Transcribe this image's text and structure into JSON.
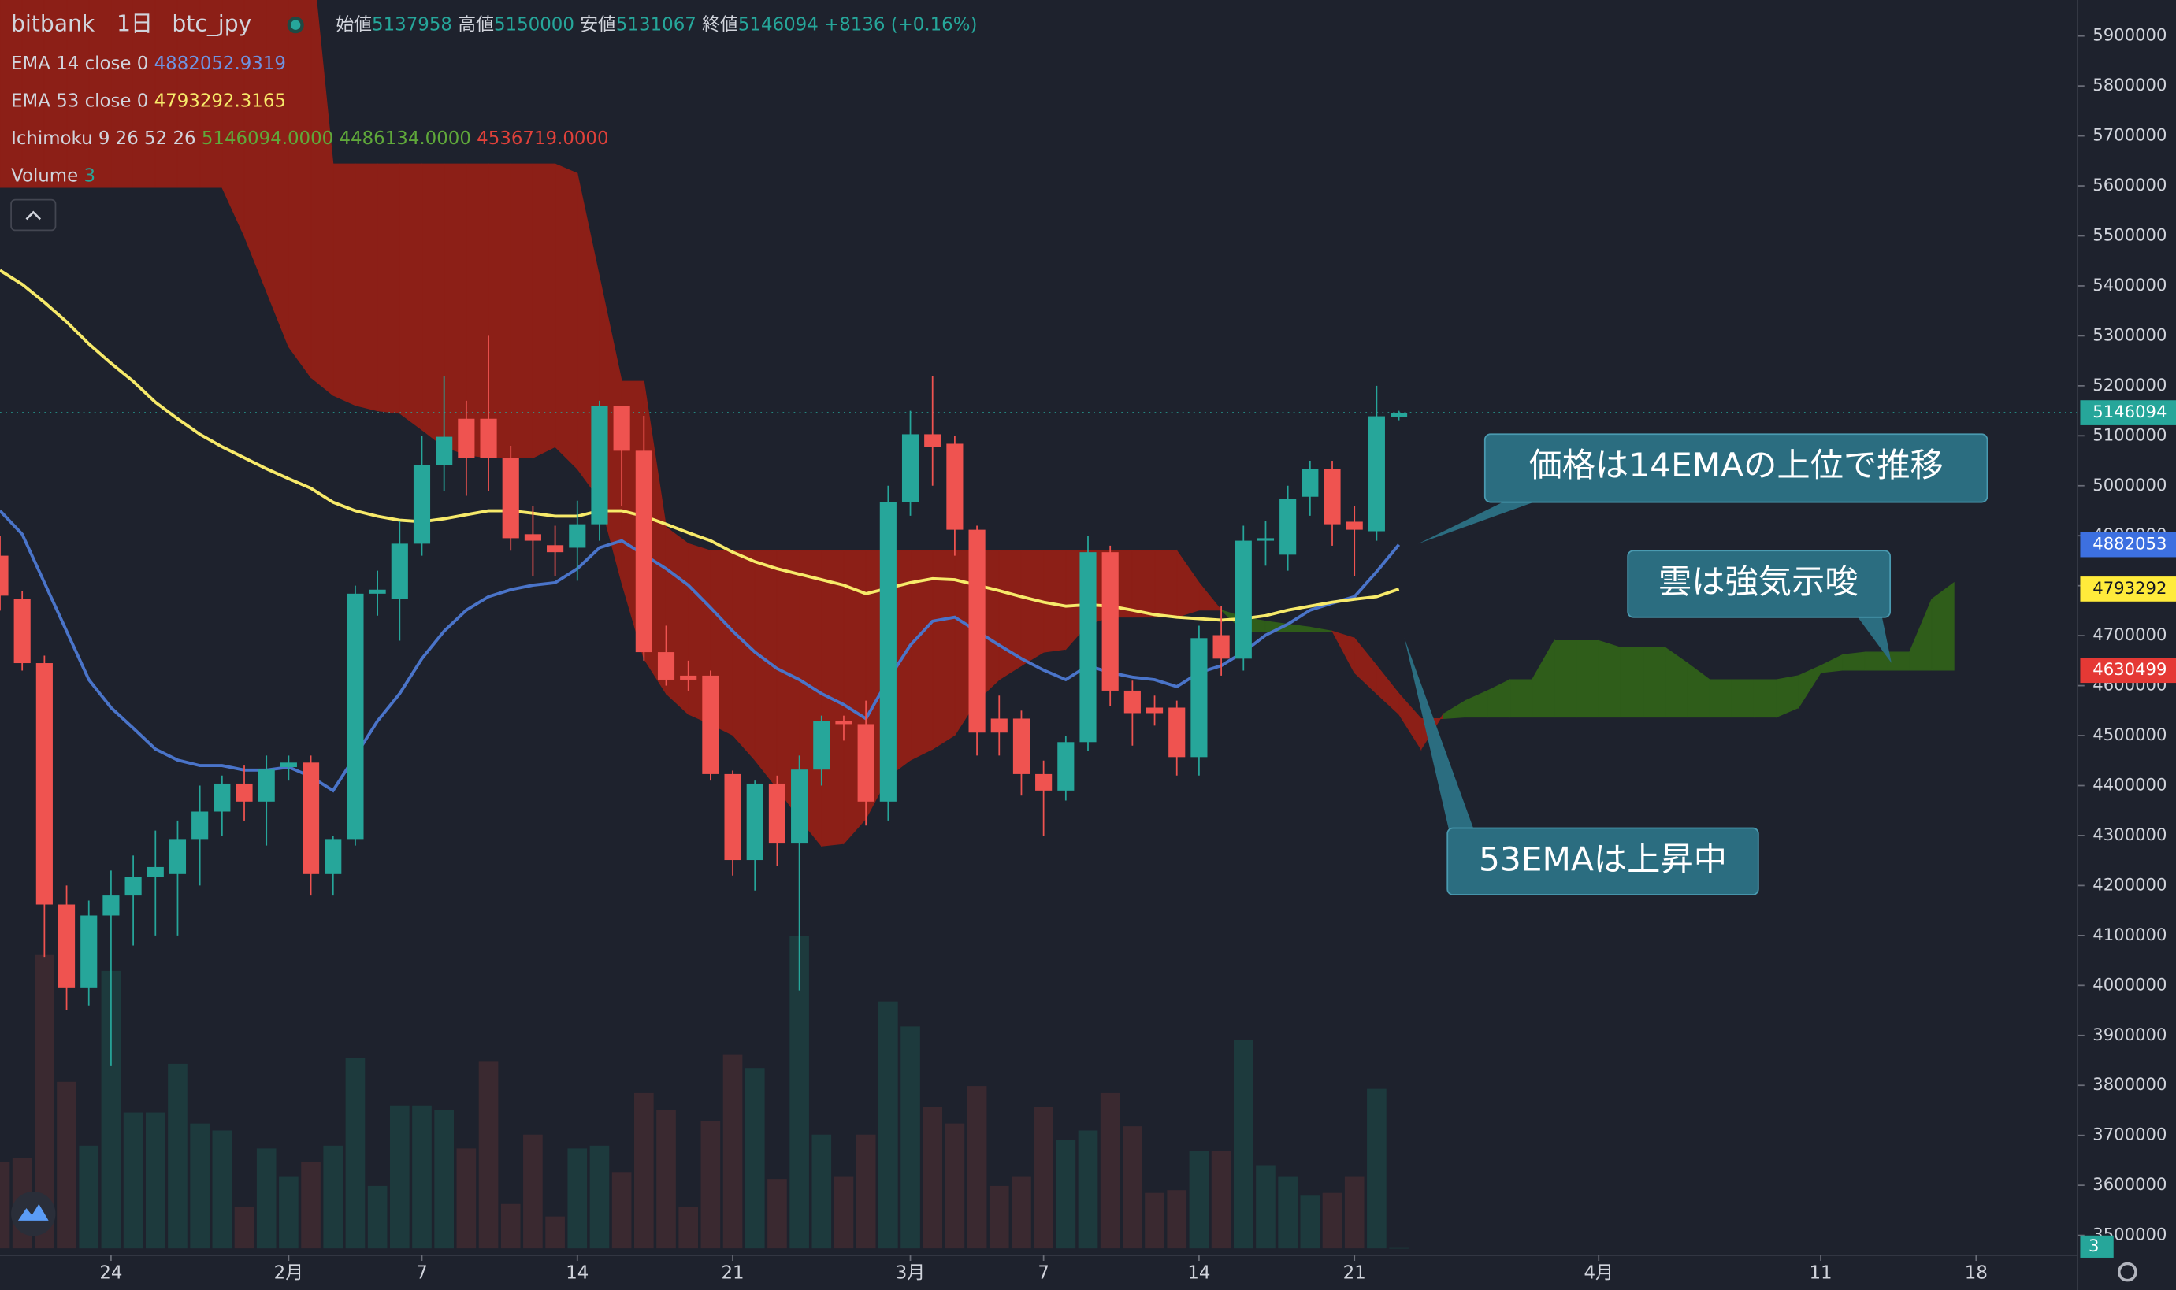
{
  "chart_data": {
    "type": "candlestick",
    "header": {
      "exchange": "bitbank",
      "interval": "1日",
      "pair": "btc_jpy",
      "labels": [
        "始値",
        "高値",
        "安値",
        "終値"
      ],
      "change": "+8136 (+0.16%)"
    },
    "up_color": "#26a69a",
    "down_color": "#ef5350",
    "xlim": [
      0,
      93.5
    ],
    "xticks": [
      {
        "value": 5,
        "label": "24"
      },
      {
        "value": 13,
        "label": "2月"
      },
      {
        "value": 19,
        "label": "7"
      },
      {
        "value": 26,
        "label": "14"
      },
      {
        "value": 33,
        "label": "21"
      },
      {
        "value": 41,
        "label": "3月"
      },
      {
        "value": 47,
        "label": "7"
      },
      {
        "value": 54,
        "label": "14"
      },
      {
        "value": 61,
        "label": "21"
      },
      {
        "value": 72,
        "label": "4月"
      },
      {
        "value": 82,
        "label": "11"
      },
      {
        "value": 89,
        "label": "18"
      }
    ],
    "ylim": [
      3460000,
      5972000
    ],
    "yticks": [
      3500000,
      3600000,
      3700000,
      3800000,
      3900000,
      4000000,
      4100000,
      4200000,
      4300000,
      4400000,
      4500000,
      4600000,
      4700000,
      4800000,
      4900000,
      5000000,
      5100000,
      5200000,
      5300000,
      5400000,
      5500000,
      5600000,
      5700000,
      5800000,
      5900000
    ],
    "open": [
      4860000,
      4773000,
      4645000,
      4162000,
      3996000,
      4140000,
      4180000,
      4217000,
      4223000,
      4293000,
      4348000,
      4404000,
      4368000,
      4437000,
      4446000,
      4223000,
      4293000,
      4784000,
      4773000,
      4884000,
      5042000,
      5134000,
      5134000,
      5056000,
      4903000,
      4881000,
      4876000,
      4923000,
      5159000,
      5070000,
      4667000,
      4620000,
      4620000,
      4423000,
      4251000,
      4404000,
      4284000,
      4432000,
      4529000,
      4523000,
      4368000,
      4967000,
      5103000,
      5084000,
      4912000,
      4534000,
      4534000,
      4423000,
      4390000,
      4487000,
      4867000,
      4590000,
      4556000,
      4556000,
      4457000,
      4701000,
      4654000,
      4890000,
      4862000,
      4978000,
      5034000,
      4928000,
      4909000,
      5137958
    ],
    "high": [
      4900000,
      4790000,
      4660000,
      4200000,
      4170000,
      4230000,
      4260000,
      4310000,
      4330000,
      4400000,
      4420000,
      4440000,
      4460000,
      4460000,
      4460000,
      4300000,
      4800000,
      4830000,
      4930000,
      5100000,
      5220000,
      5170000,
      5300000,
      5080000,
      4960000,
      4920000,
      4970000,
      5170000,
      5160000,
      5140000,
      4720000,
      4650000,
      4630000,
      4430000,
      4410000,
      4420000,
      4460000,
      4540000,
      4540000,
      4570000,
      5000000,
      5150000,
      5220000,
      5100000,
      4920000,
      4580000,
      4550000,
      4450000,
      4500000,
      4900000,
      4880000,
      4610000,
      4580000,
      4570000,
      4720000,
      4760000,
      4920000,
      4930000,
      5000000,
      5050000,
      5050000,
      4960000,
      5200000,
      5150000
    ],
    "low": [
      4750000,
      4630000,
      4057000,
      3950000,
      3960000,
      3840000,
      4080000,
      4100000,
      4100000,
      4200000,
      4300000,
      4330000,
      4280000,
      4410000,
      4180000,
      4180000,
      4280000,
      4740000,
      4690000,
      4860000,
      4990000,
      4980000,
      4990000,
      4870000,
      4820000,
      4820000,
      4810000,
      4890000,
      4960000,
      4650000,
      4600000,
      4590000,
      4410000,
      4220000,
      4190000,
      4240000,
      3990000,
      4400000,
      4490000,
      4320000,
      4330000,
      4940000,
      5000000,
      4860000,
      4460000,
      4460000,
      4380000,
      4300000,
      4370000,
      4470000,
      4560000,
      4480000,
      4520000,
      4420000,
      4420000,
      4620000,
      4630000,
      4840000,
      4830000,
      4940000,
      4880000,
      4820000,
      4890000,
      5131067
    ],
    "close": [
      4780000,
      4645000,
      4162000,
      3996000,
      4140000,
      4180000,
      4217000,
      4237000,
      4293000,
      4348000,
      4404000,
      4368000,
      4432000,
      4446000,
      4223000,
      4293000,
      4784000,
      4792000,
      4884000,
      5042000,
      5098000,
      5056000,
      5056000,
      4895000,
      4890000,
      4867000,
      4923000,
      5159000,
      5070000,
      4667000,
      4612000,
      4612000,
      4423000,
      4251000,
      4404000,
      4284000,
      4432000,
      4529000,
      4523000,
      4368000,
      4967000,
      5103000,
      5078000,
      4912000,
      4506000,
      4506000,
      4423000,
      4390000,
      4487000,
      4867000,
      4590000,
      4545000,
      4545000,
      4457000,
      4695000,
      4654000,
      4890000,
      4895000,
      4973000,
      5034000,
      4923000,
      4912000,
      5139000,
      5146094
    ],
    "lines": [
      {
        "name": "EMA 14 close 0",
        "color": "#4a74c9",
        "values": [
          4950000,
          4903000,
          4806000,
          4709000,
          4612000,
          4556000,
          4515000,
          4473000,
          4451000,
          4440000,
          4440000,
          4431000,
          4431000,
          4437000,
          4418000,
          4390000,
          4459000,
          4529000,
          4584000,
          4654000,
          4709000,
          4751000,
          4778000,
          4792000,
          4801000,
          4806000,
          4834000,
          4876000,
          4890000,
          4862000,
          4834000,
          4801000,
          4756000,
          4709000,
          4667000,
          4634000,
          4612000,
          4584000,
          4562000,
          4534000,
          4612000,
          4681000,
          4729000,
          4737000,
          4709000,
          4681000,
          4654000,
          4631000,
          4612000,
          4640000,
          4626000,
          4617000,
          4612000,
          4598000,
          4626000,
          4640000,
          4667000,
          4701000,
          4723000,
          4751000,
          4765000,
          4778000,
          4828000,
          4882052.9319
        ]
      },
      {
        "name": "EMA 53 close 0",
        "color": "#f7ea6a",
        "values": [
          5431000,
          5403000,
          5367000,
          5328000,
          5284000,
          5245000,
          5209000,
          5167000,
          5134000,
          5103000,
          5078000,
          5056000,
          5034000,
          5014000,
          4995000,
          4967000,
          4950000,
          4939000,
          4931000,
          4928000,
          4934000,
          4942000,
          4950000,
          4950000,
          4945000,
          4939000,
          4939000,
          4950000,
          4950000,
          4939000,
          4923000,
          4906000,
          4890000,
          4867000,
          4848000,
          4834000,
          4823000,
          4812000,
          4801000,
          4784000,
          4795000,
          4806000,
          4814000,
          4812000,
          4801000,
          4790000,
          4778000,
          4767000,
          4759000,
          4762000,
          4759000,
          4751000,
          4742000,
          4737000,
          4734000,
          4731000,
          4734000,
          4740000,
          4751000,
          4759000,
          4767000,
          4773000,
          4778000,
          4793292.3165
        ]
      }
    ],
    "ichimoku": {
      "name": "Ichimoku 9 26 52 26",
      "up_color": "#2f5d1a",
      "down_color": "#8c1f17",
      "readout": [
        {
          "value": 5146094,
          "label": "5146094.0000",
          "color": "#5fa83a"
        },
        {
          "value": 4486134,
          "label": "4486134.0000",
          "color": "#5fa83a"
        },
        {
          "value": 4536719,
          "label": "4536719.0000",
          "color": "#e0413a"
        }
      ],
      "span_a": [
        5597000,
        5597000,
        5597000,
        5597000,
        5597000,
        5597000,
        5597000,
        5597000,
        5597000,
        5597000,
        5597000,
        5500000,
        5389000,
        5278000,
        5217000,
        5181000,
        5161000,
        5150000,
        5145000,
        5112000,
        5078000,
        5062000,
        5056000,
        5056000,
        5056000,
        5078000,
        5034000,
        4973000,
        4806000,
        4654000,
        4584000,
        4543000,
        4523000,
        4501000,
        4451000,
        4395000,
        4334000,
        4279000,
        4284000,
        4334000,
        4418000,
        4451000,
        4473000,
        4501000,
        4570000,
        4612000,
        4640000,
        4667000,
        4673000,
        4723000,
        4737000,
        4737000,
        4737000,
        4737000,
        4751000,
        4751000,
        4737000,
        4729000,
        4723000,
        4717000,
        4709000,
        4626000,
        4584000,
        4543000,
        4473000,
        4543000,
        4570000,
        4590000,
        4612000,
        4612000,
        4690000,
        4690000,
        4690000,
        4676000,
        4676000,
        4676000,
        4645000,
        4612000,
        4612000,
        4612000,
        4612000,
        4620000,
        4640000,
        4662000,
        4667000,
        4667000,
        4667000,
        4773000,
        4806000
      ],
      "span_b": [
        6083000,
        6083000,
        6083000,
        6083000,
        6083000,
        6083000,
        6083000,
        6083000,
        6083000,
        6083000,
        6083000,
        6083000,
        6083000,
        6083000,
        6083000,
        5644000,
        5644000,
        5644000,
        5644000,
        5644000,
        5644000,
        5644000,
        5644000,
        5644000,
        5644000,
        5644000,
        5625000,
        5417000,
        5209000,
        5209000,
        4917000,
        4884000,
        4870000,
        4870000,
        4870000,
        4870000,
        4870000,
        4870000,
        4870000,
        4870000,
        4870000,
        4870000,
        4870000,
        4870000,
        4870000,
        4870000,
        4870000,
        4870000,
        4870000,
        4870000,
        4870000,
        4870000,
        4870000,
        4870000,
        4806000,
        4751000,
        4709000,
        4709000,
        4709000,
        4709000,
        4709000,
        4695000,
        4640000,
        4584000,
        4534000,
        4534000,
        4537000,
        4537000,
        4537000,
        4537000,
        4537000,
        4537000,
        4537000,
        4537000,
        4537000,
        4537000,
        4537000,
        4537000,
        4537000,
        4537000,
        4537000,
        4556000,
        4626000,
        4631000,
        4631000,
        4631000,
        4631000,
        4631000,
        4631000
      ]
    },
    "volume": {
      "name": "Volume",
      "lim": [
        0,
        9000
      ],
      "up_color": "#1d3a3d",
      "down_color": "#3a2930",
      "values": [
        620,
        650,
        2120,
        1200,
        740,
        2000,
        980,
        980,
        1330,
        900,
        850,
        300,
        720,
        520,
        620,
        740,
        1370,
        450,
        1030,
        1030,
        1000,
        720,
        1350,
        320,
        820,
        230,
        720,
        740,
        550,
        1120,
        1000,
        300,
        920,
        1400,
        1300,
        500,
        2250,
        820,
        520,
        820,
        1780,
        1600,
        1020,
        900,
        1170,
        450,
        520,
        1020,
        780,
        850,
        1120,
        880,
        400,
        420,
        700,
        700,
        1500,
        600,
        520,
        380,
        400,
        520,
        1150,
        3
      ]
    },
    "price_tags": [
      {
        "value": 5146094,
        "color": "#26a69a"
      },
      {
        "value": 4882052.9319,
        "label": "4882053",
        "color": "#3d70e0"
      },
      {
        "value": 4793292.3165,
        "label": "4793292",
        "color": "#ffeb3b"
      },
      {
        "value": 4630499,
        "color": "#e53935"
      }
    ],
    "annotations": [
      "価格は14EMAの上位で推移",
      "雲は強気示唆",
      "53EMAは上昇中"
    ]
  }
}
